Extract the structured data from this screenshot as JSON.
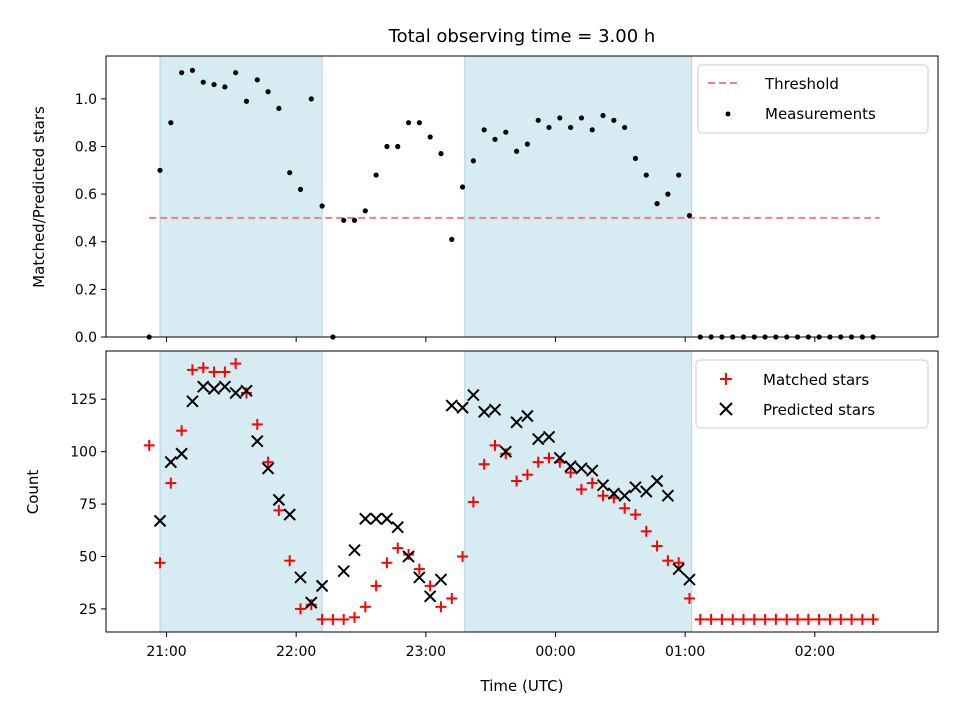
{
  "chart_data": [
    {
      "type": "scatter",
      "title": "Total observing time = 3.00 h",
      "ylabel": "Matched/Predicted stars",
      "xlabel": "",
      "ylim": [
        0,
        1.18
      ],
      "yticks": [
        "0.0",
        "0.2",
        "0.4",
        "0.6",
        "0.8",
        "1.0"
      ],
      "ytick_values": [
        0,
        0.2,
        0.4,
        0.6,
        0.8,
        1.0
      ],
      "shaded_intervals": [
        [
          "20:57",
          "22:12"
        ],
        [
          "23:18",
          "01:03"
        ]
      ],
      "threshold": {
        "name": "Threshold",
        "y": 0.5,
        "x_range": [
          "20:52",
          "02:30"
        ],
        "color": "#f08080"
      },
      "series": [
        {
          "name": "Measurements",
          "color": "#000000",
          "x": [
            "20:52",
            "20:57",
            "21:02",
            "21:07",
            "21:12",
            "21:17",
            "21:22",
            "21:27",
            "21:32",
            "21:37",
            "21:42",
            "21:47",
            "21:52",
            "21:57",
            "22:02",
            "22:07",
            "22:12",
            "22:17",
            "22:22",
            "22:27",
            "22:32",
            "22:37",
            "22:42",
            "22:47",
            "22:52",
            "22:57",
            "23:02",
            "23:07",
            "23:12",
            "23:17",
            "23:22",
            "23:27",
            "23:32",
            "23:37",
            "23:42",
            "23:47",
            "23:52",
            "23:57",
            "00:02",
            "00:07",
            "00:12",
            "00:17",
            "00:22",
            "00:27",
            "00:32",
            "00:37",
            "00:42",
            "00:47",
            "00:52",
            "00:57",
            "01:02",
            "01:07",
            "01:12",
            "01:17",
            "01:22",
            "01:27",
            "01:32",
            "01:37",
            "01:42",
            "01:47",
            "01:52",
            "01:57",
            "02:02",
            "02:07",
            "02:12",
            "02:17",
            "02:22",
            "02:27"
          ],
          "y": [
            0.0,
            0.7,
            0.9,
            1.11,
            1.12,
            1.07,
            1.06,
            1.05,
            1.11,
            0.99,
            1.08,
            1.03,
            0.96,
            0.69,
            0.62,
            1.0,
            0.55,
            0.0,
            0.49,
            0.49,
            0.53,
            0.68,
            0.8,
            0.8,
            0.9,
            0.9,
            0.84,
            0.77,
            0.41,
            0.63,
            0.74,
            0.87,
            0.83,
            0.86,
            0.78,
            0.81,
            0.91,
            0.88,
            0.92,
            0.88,
            0.92,
            0.87,
            0.93,
            0.91,
            0.88,
            0.75,
            0.68,
            0.56,
            0.6,
            0.68,
            0.51,
            0.0,
            0.0,
            0.0,
            0.0,
            0.0,
            0.0,
            0.0,
            0.0,
            0.0,
            0.0,
            0.0,
            0.0,
            0.0,
            0.0,
            0.0,
            0.0,
            0.0
          ]
        }
      ],
      "legend": {
        "location": "top-right",
        "entries": [
          "Threshold",
          "Measurements"
        ]
      }
    },
    {
      "type": "scatter",
      "title": "",
      "xlabel": "Time (UTC)",
      "ylabel": "Count",
      "ylim": [
        14,
        148
      ],
      "yticks": [
        "25",
        "50",
        "75",
        "100",
        "125"
      ],
      "ytick_values": [
        25,
        50,
        75,
        100,
        125
      ],
      "xticks": [
        "21:00",
        "22:00",
        "23:00",
        "00:00",
        "01:00",
        "02:00"
      ],
      "shaded_intervals": [
        [
          "20:57",
          "22:12"
        ],
        [
          "23:18",
          "01:03"
        ]
      ],
      "series": [
        {
          "name": "Matched stars",
          "marker": "plus",
          "color": "#ff0000",
          "x": [
            "20:52",
            "20:57",
            "21:02",
            "21:07",
            "21:12",
            "21:17",
            "21:22",
            "21:27",
            "21:32",
            "21:37",
            "21:42",
            "21:47",
            "21:52",
            "21:57",
            "22:02",
            "22:07",
            "22:12",
            "22:17",
            "22:22",
            "22:27",
            "22:32",
            "22:37",
            "22:42",
            "22:47",
            "22:52",
            "22:57",
            "23:02",
            "23:07",
            "23:12",
            "23:17",
            "23:22",
            "23:27",
            "23:32",
            "23:37",
            "23:42",
            "23:47",
            "23:52",
            "23:57",
            "00:02",
            "00:07",
            "00:12",
            "00:17",
            "00:22",
            "00:27",
            "00:32",
            "00:37",
            "00:42",
            "00:47",
            "00:52",
            "00:57",
            "01:02",
            "01:07",
            "01:12",
            "01:17",
            "01:22",
            "01:27",
            "01:32",
            "01:37",
            "01:42",
            "01:47",
            "01:52",
            "01:57",
            "02:02",
            "02:07",
            "02:12",
            "02:17",
            "02:22",
            "02:27"
          ],
          "y": [
            103,
            47,
            85,
            110,
            139,
            140,
            138,
            138,
            142,
            128,
            113,
            95,
            72,
            48,
            25,
            27,
            20,
            20,
            20,
            21,
            26,
            36,
            47,
            54,
            51,
            44,
            36,
            26,
            30,
            50,
            76,
            94,
            103,
            99,
            86,
            89,
            95,
            97,
            95,
            90,
            82,
            85,
            79,
            78,
            73,
            70,
            62,
            55,
            48,
            47,
            30,
            20,
            20,
            20,
            20,
            20,
            20,
            20,
            20,
            20,
            20,
            20,
            20,
            20,
            20,
            20,
            20,
            20
          ]
        },
        {
          "name": "Predicted stars",
          "marker": "x",
          "color": "#000000",
          "x": [
            "20:57",
            "21:02",
            "21:07",
            "21:12",
            "21:17",
            "21:22",
            "21:27",
            "21:32",
            "21:37",
            "21:42",
            "21:47",
            "21:52",
            "21:57",
            "22:02",
            "22:07",
            "22:12",
            "22:22",
            "22:27",
            "22:32",
            "22:37",
            "22:42",
            "22:47",
            "22:52",
            "22:57",
            "23:02",
            "23:07",
            "23:12",
            "23:17",
            "23:22",
            "23:27",
            "23:32",
            "23:37",
            "23:42",
            "23:47",
            "23:52",
            "23:57",
            "00:02",
            "00:07",
            "00:12",
            "00:17",
            "00:22",
            "00:27",
            "00:32",
            "00:37",
            "00:42",
            "00:47",
            "00:52",
            "00:57",
            "01:02"
          ],
          "y": [
            67,
            95,
            99,
            124,
            131,
            130,
            131,
            128,
            129,
            105,
            92,
            77,
            70,
            40,
            28,
            36,
            43,
            53,
            68,
            68,
            68,
            64,
            50,
            40,
            31,
            39,
            122,
            121,
            127,
            119,
            120,
            100,
            114,
            117,
            106,
            107,
            97,
            93,
            92,
            91,
            84,
            80,
            79,
            83,
            81,
            86,
            79,
            44,
            39
          ]
        }
      ],
      "legend": {
        "location": "top-right",
        "entries": [
          "Matched stars",
          "Predicted stars"
        ]
      }
    }
  ]
}
